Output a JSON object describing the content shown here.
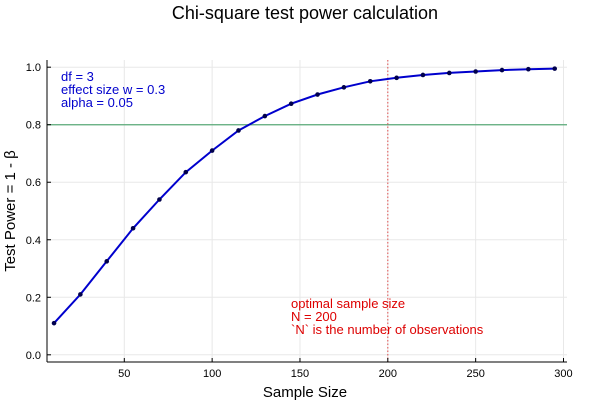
{
  "chart_data": {
    "type": "line",
    "title": "Chi-square test power calculation",
    "xlabel": "Sample Size",
    "ylabel": "Test Power = 1 -  β",
    "xlim": [
      6,
      302
    ],
    "ylim": [
      -0.025,
      1.025
    ],
    "x_ticks": [
      50,
      100,
      150,
      200,
      250,
      300
    ],
    "y_ticks": [
      0.0,
      0.2,
      0.4,
      0.6,
      0.8,
      1.0
    ],
    "grid": true,
    "series": [
      {
        "color": "#0000cd",
        "marker_color": "#00004d",
        "x": [
          10,
          25,
          40,
          55,
          70,
          85,
          100,
          115,
          130,
          145,
          160,
          175,
          190,
          205,
          220,
          235,
          250,
          265,
          280,
          295
        ],
        "y": [
          0.11,
          0.21,
          0.325,
          0.44,
          0.54,
          0.635,
          0.71,
          0.78,
          0.83,
          0.873,
          0.905,
          0.93,
          0.951,
          0.963,
          0.973,
          0.98,
          0.985,
          0.99,
          0.993,
          0.995
        ]
      }
    ],
    "hline": {
      "y": 0.8,
      "color": "#5aaa78"
    },
    "vline": {
      "x": 200,
      "color": "#e05050"
    },
    "annotations": {
      "params": {
        "color": "#0000cd",
        "lines": [
          "df = 3",
          "effect size w = 0.3",
          "alpha = 0.05"
        ]
      },
      "optimal": {
        "color": "#dd0000",
        "lines": [
          "optimal sample size",
          "N = 200",
          "`N` is the number of observations"
        ]
      }
    }
  }
}
